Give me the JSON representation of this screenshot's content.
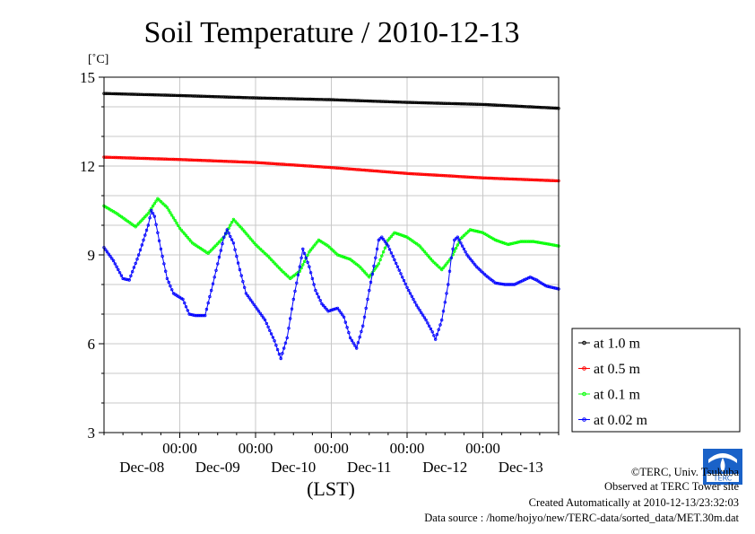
{
  "chart_data": {
    "type": "line",
    "title": "Soil Temperature / 2010-12-13",
    "yunit": "[˚C]",
    "xlabel": "(LST)",
    "ylim": [
      3,
      15
    ],
    "yticks": [
      3,
      6,
      9,
      12,
      15
    ],
    "xlim": [
      0,
      144
    ],
    "x_units": "hours from 2010-12-08 00:00 LST",
    "xticks": [
      {
        "hour": 24,
        "time": "00:00"
      },
      {
        "hour": 48,
        "time": "00:00"
      },
      {
        "hour": 72,
        "time": "00:00"
      },
      {
        "hour": 96,
        "time": "00:00"
      },
      {
        "hour": 120,
        "time": "00:00"
      }
    ],
    "day_labels": [
      {
        "hour": 12,
        "label": "Dec-08"
      },
      {
        "hour": 36,
        "label": "Dec-09"
      },
      {
        "hour": 60,
        "label": "Dec-10"
      },
      {
        "hour": 84,
        "label": "Dec-11"
      },
      {
        "hour": 108,
        "label": "Dec-12"
      },
      {
        "hour": 132,
        "label": "Dec-13"
      }
    ],
    "grid": true,
    "legend_position": "right",
    "series": [
      {
        "name": "at 1.0 m",
        "color": "#000000",
        "points": [
          [
            0,
            14.45
          ],
          [
            24,
            14.38
          ],
          [
            48,
            14.3
          ],
          [
            72,
            14.24
          ],
          [
            96,
            14.15
          ],
          [
            120,
            14.08
          ],
          [
            144,
            13.95
          ]
        ]
      },
      {
        "name": "at 0.5 m",
        "color": "#ff0000",
        "points": [
          [
            0,
            12.3
          ],
          [
            24,
            12.22
          ],
          [
            48,
            12.12
          ],
          [
            72,
            11.95
          ],
          [
            96,
            11.75
          ],
          [
            120,
            11.6
          ],
          [
            144,
            11.5
          ]
        ]
      },
      {
        "name": "at 0.1 m",
        "color": "#00ff00",
        "points": [
          [
            0,
            10.65
          ],
          [
            4,
            10.4
          ],
          [
            10,
            9.95
          ],
          [
            14,
            10.4
          ],
          [
            17,
            10.9
          ],
          [
            20,
            10.6
          ],
          [
            24,
            9.9
          ],
          [
            28,
            9.4
          ],
          [
            33,
            9.05
          ],
          [
            38,
            9.6
          ],
          [
            41,
            10.2
          ],
          [
            44,
            9.85
          ],
          [
            48,
            9.35
          ],
          [
            52,
            8.95
          ],
          [
            56,
            8.5
          ],
          [
            59,
            8.2
          ],
          [
            62,
            8.45
          ],
          [
            65,
            9.1
          ],
          [
            68,
            9.5
          ],
          [
            71,
            9.3
          ],
          [
            74,
            9.0
          ],
          [
            78,
            8.85
          ],
          [
            81,
            8.6
          ],
          [
            84,
            8.25
          ],
          [
            87,
            8.7
          ],
          [
            90,
            9.5
          ],
          [
            92,
            9.75
          ],
          [
            96,
            9.6
          ],
          [
            100,
            9.3
          ],
          [
            104,
            8.8
          ],
          [
            107,
            8.5
          ],
          [
            110,
            8.9
          ],
          [
            113,
            9.55
          ],
          [
            116,
            9.85
          ],
          [
            120,
            9.75
          ],
          [
            124,
            9.5
          ],
          [
            128,
            9.35
          ],
          [
            132,
            9.45
          ],
          [
            136,
            9.45
          ],
          [
            140,
            9.38
          ],
          [
            144,
            9.3
          ]
        ]
      },
      {
        "name": "at 0.02 m",
        "color": "#0000ff",
        "points": [
          [
            0,
            9.25
          ],
          [
            3,
            8.8
          ],
          [
            6,
            8.2
          ],
          [
            8,
            8.15
          ],
          [
            11,
            9.0
          ],
          [
            14,
            10.0
          ],
          [
            15,
            10.5
          ],
          [
            16,
            10.3
          ],
          [
            18,
            9.2
          ],
          [
            20,
            8.2
          ],
          [
            22,
            7.7
          ],
          [
            25,
            7.5
          ],
          [
            27,
            7.0
          ],
          [
            29,
            6.95
          ],
          [
            32,
            6.95
          ],
          [
            34,
            7.8
          ],
          [
            36,
            8.7
          ],
          [
            38,
            9.6
          ],
          [
            39,
            9.85
          ],
          [
            41,
            9.4
          ],
          [
            43,
            8.5
          ],
          [
            45,
            7.7
          ],
          [
            48,
            7.25
          ],
          [
            51,
            6.8
          ],
          [
            54,
            6.1
          ],
          [
            56,
            5.5
          ],
          [
            58,
            6.2
          ],
          [
            60,
            7.5
          ],
          [
            62,
            8.6
          ],
          [
            63,
            9.2
          ],
          [
            65,
            8.6
          ],
          [
            67,
            7.8
          ],
          [
            69,
            7.35
          ],
          [
            71,
            7.1
          ],
          [
            74,
            7.2
          ],
          [
            76,
            6.9
          ],
          [
            78,
            6.2
          ],
          [
            80,
            5.85
          ],
          [
            82,
            6.6
          ],
          [
            84,
            7.8
          ],
          [
            86,
            8.9
          ],
          [
            87,
            9.5
          ],
          [
            88,
            9.6
          ],
          [
            90,
            9.3
          ],
          [
            93,
            8.6
          ],
          [
            96,
            7.9
          ],
          [
            99,
            7.3
          ],
          [
            102,
            6.8
          ],
          [
            104,
            6.4
          ],
          [
            105,
            6.15
          ],
          [
            107,
            6.8
          ],
          [
            109,
            8.0
          ],
          [
            110,
            8.9
          ],
          [
            111,
            9.5
          ],
          [
            112,
            9.6
          ],
          [
            115,
            9.0
          ],
          [
            118,
            8.6
          ],
          [
            121,
            8.3
          ],
          [
            124,
            8.05
          ],
          [
            127,
            8.0
          ],
          [
            130,
            8.0
          ],
          [
            133,
            8.15
          ],
          [
            135,
            8.25
          ],
          [
            137,
            8.15
          ],
          [
            140,
            7.95
          ],
          [
            144,
            7.85
          ]
        ]
      }
    ]
  },
  "footer": {
    "copyright": "©TERC, Univ. Tsukuba",
    "observed": "Observed at TERC Tower site",
    "created": "Created Automatically at 2010-12-13/23:32:03",
    "source": "Data source : /home/hojyo/new/TERC-data/sorted_data/MET.30m.dat"
  },
  "logo": {
    "text": "TERC",
    "color": "#1a62c8"
  }
}
